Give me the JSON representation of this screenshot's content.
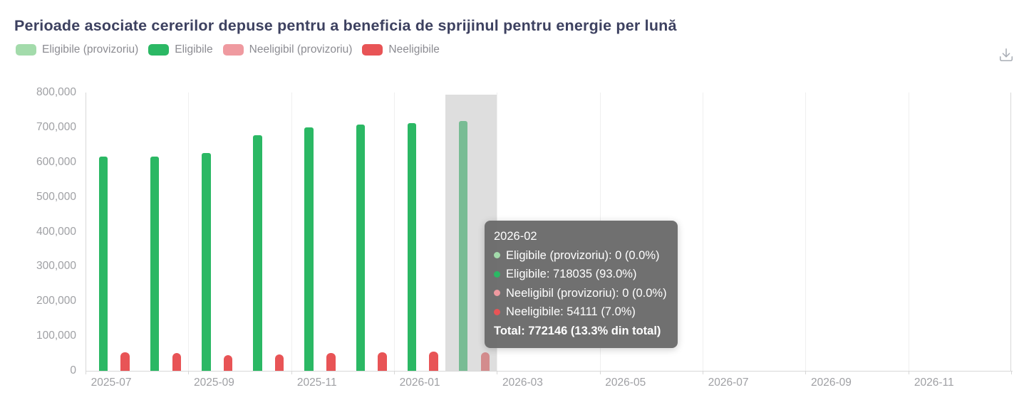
{
  "header": {
    "title": "Perioade asociate cererilor depuse pentru a beneficia de sprijinul pentru energie per lună"
  },
  "colors": {
    "eligible_provisional": "#a3dbab",
    "eligible": "#2bb864",
    "ineligible_provisional": "#ef9aa0",
    "ineligible": "#e85456",
    "title_text": "#3d4160",
    "legend_text": "#8c8c92",
    "axis_text": "#9fa0a4",
    "gridline": "#efefef",
    "axis_line": "#d8d8d8",
    "tooltip_background": "#686868",
    "highlight_band": "#c0c0c0",
    "icon": "#a9aeb6"
  },
  "legend": {
    "items": [
      {
        "label": "Eligibile (provizoriu)",
        "color": "#a3dbab"
      },
      {
        "label": "Eligibile",
        "color": "#2bb864"
      },
      {
        "label": "Neeligibil (provizoriu)",
        "color": "#ef9aa0"
      },
      {
        "label": "Neeligibile",
        "color": "#e85456"
      }
    ]
  },
  "chart_data": {
    "type": "bar",
    "title": "Perioade asociate cererilor depuse pentru a beneficia de sprijinul pentru energie per lună",
    "categories": [
      "2025-07",
      "2025-08",
      "2025-09",
      "2025-10",
      "2025-11",
      "2025-12",
      "2026-01",
      "2026-02",
      "2026-03",
      "2026-04",
      "2026-05",
      "2026-06",
      "2026-07",
      "2026-08",
      "2026-09",
      "2026-10",
      "2026-11",
      "2026-12"
    ],
    "series": [
      {
        "name": "Eligibile (provizoriu)",
        "color": "#a3dbab",
        "values": [
          0,
          0,
          0,
          0,
          0,
          0,
          0,
          0
        ]
      },
      {
        "name": "Eligibile",
        "color": "#2bb864",
        "values": [
          615000,
          616000,
          626000,
          678000,
          700000,
          707000,
          712000,
          718035
        ]
      },
      {
        "name": "Neeligibil (provizoriu)",
        "color": "#ef9aa0",
        "values": [
          0,
          0,
          0,
          0,
          0,
          0,
          0,
          0
        ]
      },
      {
        "name": "Neeligibile",
        "color": "#e85456",
        "values": [
          53000,
          52000,
          44000,
          48000,
          51000,
          53000,
          55000,
          54111
        ]
      }
    ],
    "ylim": [
      0,
      800000
    ],
    "ytick_labels": [
      "0",
      "100,000",
      "200,000",
      "300,000",
      "400,000",
      "500,000",
      "600,000",
      "700,000",
      "800,000"
    ],
    "xtick_labels": [
      "2025-07",
      "2025-09",
      "2025-11",
      "2026-01",
      "2026-03",
      "2026-05",
      "2026-07",
      "2026-09",
      "2026-11"
    ],
    "grid": "vertical-only",
    "legend_position": "top-left",
    "highlighted_category": "2026-02"
  },
  "tooltip": {
    "header": "2026-02",
    "rows": [
      {
        "label": "Eligibile (provizoriu)",
        "value": "0 (0.0%)",
        "color": "#a3dbab"
      },
      {
        "label": "Eligibile",
        "value": "718035 (93.0%)",
        "color": "#2bb864"
      },
      {
        "label": "Neeligibil (provizoriu)",
        "value": "0 (0.0%)",
        "color": "#ef9aa0"
      },
      {
        "label": "Neeligibile",
        "value": "54111 (7.0%)",
        "color": "#e85456"
      }
    ],
    "total": "Total: 772146 (13.3% din total)"
  }
}
